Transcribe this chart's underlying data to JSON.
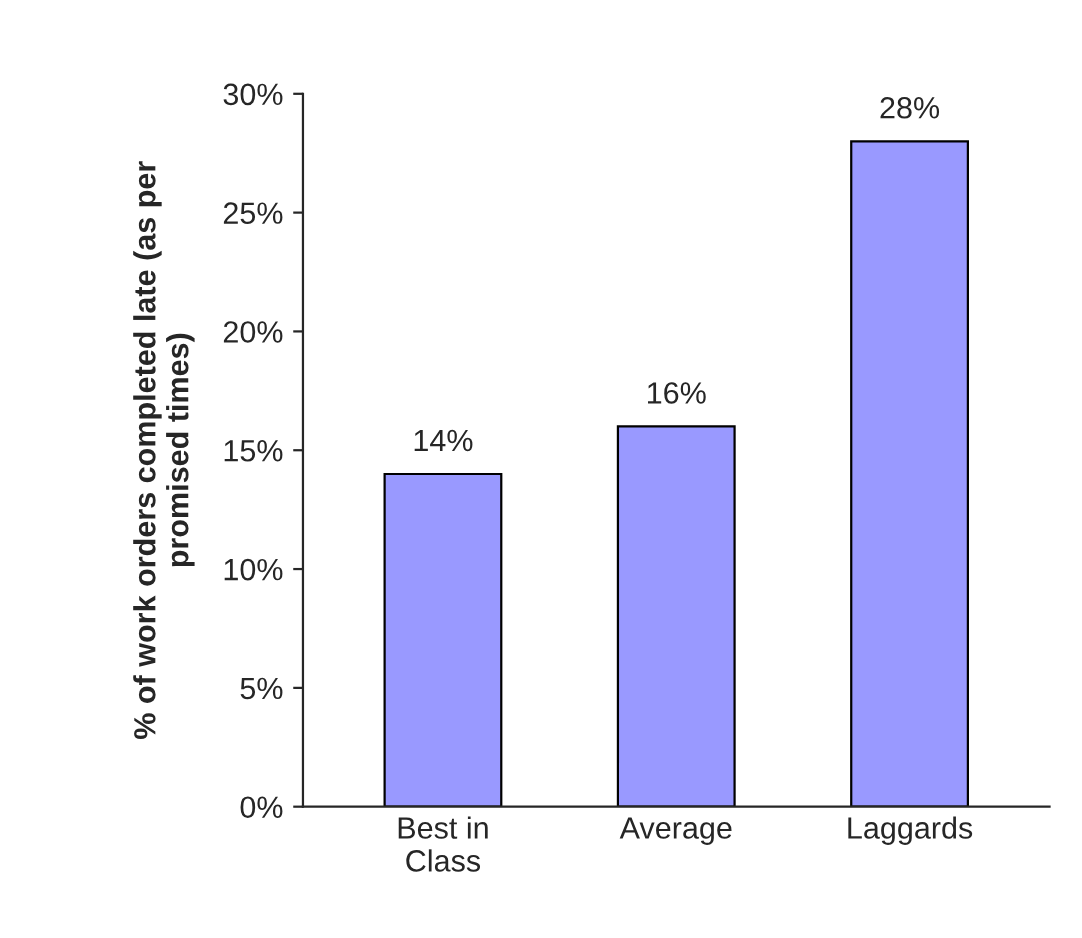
{
  "chart_data": {
    "type": "bar",
    "ylabel": "% of work orders completed late (as per\npromised times)",
    "categories": [
      "Best in\nClass",
      "Average",
      "Laggards"
    ],
    "values": [
      14,
      16,
      28
    ],
    "color": "#9999ff",
    "value_labels": [
      "14%",
      "16%",
      "28%"
    ],
    "ylim": [
      0,
      30
    ],
    "yticks": [
      {
        "value": 0,
        "label": "0%"
      },
      {
        "value": 5,
        "label": "5%"
      },
      {
        "value": 10,
        "label": "10%"
      },
      {
        "value": 15,
        "label": "15%"
      },
      {
        "value": 20,
        "label": "20%"
      },
      {
        "value": 25,
        "label": "25%"
      },
      {
        "value": 30,
        "label": "30%"
      }
    ],
    "grid": false,
    "legend": false
  }
}
